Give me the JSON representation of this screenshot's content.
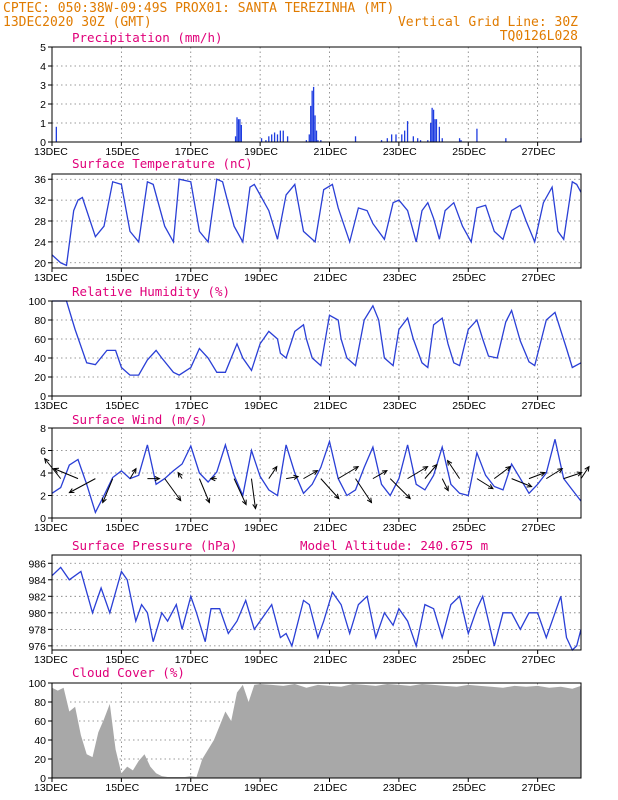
{
  "header": {
    "line1_left": "CPTEC:  050:38W-09:49S  PROX01: SANTA TEREZINHA (MT)",
    "line2_left": "13DEC2020 30Z (GMT)",
    "line2_right": "Vertical Grid Line: 30Z",
    "line3_right": "TQ0126L028"
  },
  "colors": {
    "header": "#e07b00",
    "title": "#e0007a",
    "line": "#2a3fd6",
    "bar": "#1e3ce0",
    "cloud": "#a8a8a8",
    "arrow": "#000000"
  },
  "x_axis": {
    "labels": [
      "13DEC",
      "15DEC",
      "17DEC",
      "19DEC",
      "21DEC",
      "23DEC",
      "25DEC",
      "27DEC"
    ],
    "label_hours": [
      0,
      48,
      96,
      144,
      192,
      240,
      288,
      336
    ],
    "range_hours": [
      0,
      366
    ]
  },
  "chart_data": [
    {
      "type": "bar",
      "title": "Precipitation (mm/h)",
      "ylim": [
        0,
        5
      ],
      "yticks": [
        0,
        1,
        2,
        3,
        4,
        5
      ],
      "grid": true,
      "x": [
        3,
        127,
        128,
        129,
        130,
        131,
        145,
        148,
        150,
        152,
        154,
        156,
        158,
        160,
        163,
        176,
        178,
        179,
        180,
        181,
        182,
        183,
        184,
        186,
        210,
        228,
        232,
        235,
        238,
        242,
        244,
        246,
        250,
        253,
        255,
        260,
        262,
        263,
        264,
        265,
        266,
        268,
        270,
        282,
        283,
        294,
        314,
        366
      ],
      "values": [
        0.8,
        0.3,
        1.3,
        1.2,
        1.2,
        0.9,
        0.2,
        0.1,
        0.3,
        0.4,
        0.5,
        0.4,
        0.6,
        0.6,
        0.3,
        0.1,
        0.4,
        1.9,
        2.7,
        2.9,
        1.4,
        0.6,
        0.1,
        0.1,
        0.3,
        0.1,
        0.2,
        0.4,
        0.4,
        0.4,
        0.6,
        1.1,
        0.3,
        0.2,
        0.1,
        0.1,
        1.0,
        1.8,
        1.7,
        1.2,
        1.2,
        0.8,
        0.2,
        0.2,
        0.1,
        0.7,
        0.2,
        0.2
      ]
    },
    {
      "type": "line",
      "title": "Surface Temperature (nC)",
      "ylim": [
        19,
        37
      ],
      "yticks": [
        20,
        24,
        28,
        32,
        36
      ],
      "grid": true,
      "x": [
        0,
        6,
        10,
        15,
        18,
        21,
        30,
        36,
        42,
        48,
        54,
        60,
        66,
        70,
        78,
        84,
        88,
        96,
        102,
        108,
        114,
        118,
        126,
        132,
        137,
        140,
        150,
        156,
        162,
        168,
        174,
        182,
        188,
        194,
        198,
        206,
        212,
        218,
        222,
        230,
        236,
        240,
        246,
        252,
        256,
        260,
        264,
        268,
        272,
        278,
        284,
        290,
        294,
        300,
        306,
        312,
        318,
        324,
        328,
        334,
        340,
        346,
        350,
        354,
        360,
        363,
        366
      ],
      "values": [
        21.5,
        20,
        19.5,
        30,
        32,
        32.5,
        25,
        27,
        35.5,
        35,
        26,
        24,
        35.5,
        35,
        27,
        24,
        36,
        35.5,
        26,
        24,
        36,
        35.5,
        27,
        24,
        34.5,
        35,
        30,
        24.5,
        33,
        35,
        26,
        24,
        34,
        35,
        30.5,
        24,
        30.5,
        30,
        27.5,
        24.5,
        31.5,
        32,
        30,
        24,
        30,
        31.5,
        28.5,
        24.5,
        30,
        31.5,
        27,
        24,
        30.5,
        31,
        26,
        24.5,
        30,
        31,
        28,
        24,
        31.5,
        34.5,
        26,
        24.5,
        35.5,
        35,
        33.5
      ]
    },
    {
      "type": "line",
      "title": "Relative Humidity (%)",
      "ylim": [
        0,
        100
      ],
      "yticks": [
        0,
        20,
        40,
        60,
        80,
        100
      ],
      "grid": true,
      "x": [
        0,
        10,
        16,
        24,
        30,
        38,
        44,
        48,
        54,
        60,
        66,
        72,
        76,
        84,
        88,
        96,
        102,
        108,
        114,
        120,
        124,
        128,
        132,
        138,
        144,
        150,
        156,
        158,
        162,
        168,
        174,
        176,
        180,
        186,
        192,
        198,
        200,
        204,
        210,
        216,
        222,
        226,
        230,
        236,
        240,
        246,
        250,
        256,
        260,
        264,
        270,
        274,
        278,
        282,
        288,
        294,
        298,
        302,
        308,
        314,
        318,
        324,
        330,
        334,
        342,
        348,
        356,
        360,
        366
      ],
      "values": [
        100,
        100,
        70,
        35,
        33,
        48,
        48,
        30,
        22,
        22,
        38,
        48,
        40,
        25,
        22,
        30,
        50,
        40,
        25,
        25,
        40,
        55,
        40,
        27,
        55,
        68,
        60,
        45,
        40,
        68,
        75,
        60,
        40,
        32,
        85,
        80,
        60,
        40,
        32,
        80,
        95,
        80,
        40,
        32,
        70,
        82,
        60,
        35,
        30,
        75,
        82,
        55,
        35,
        32,
        70,
        80,
        60,
        42,
        40,
        78,
        90,
        58,
        36,
        32,
        80,
        88,
        50,
        30,
        35
      ]
    },
    {
      "type": "line",
      "title": "Surface Wind (m/s)",
      "ylim": [
        0,
        8
      ],
      "yticks": [
        0,
        2,
        4,
        6,
        8
      ],
      "grid": true,
      "x": [
        0,
        6,
        12,
        18,
        24,
        30,
        36,
        42,
        48,
        54,
        60,
        66,
        72,
        78,
        84,
        90,
        96,
        102,
        108,
        114,
        120,
        126,
        132,
        138,
        144,
        150,
        156,
        162,
        168,
        174,
        180,
        186,
        192,
        198,
        204,
        210,
        216,
        222,
        228,
        234,
        240,
        246,
        252,
        258,
        264,
        270,
        276,
        282,
        288,
        294,
        300,
        306,
        312,
        318,
        324,
        330,
        336,
        342,
        348,
        354,
        360,
        366
      ],
      "values": [
        2.2,
        2.7,
        4.7,
        5.2,
        3.0,
        0.5,
        2.0,
        3.6,
        4.2,
        3.5,
        3.8,
        6.5,
        3.0,
        3.5,
        4.2,
        4.8,
        6.4,
        4.0,
        3.2,
        4.1,
        6.5,
        3.8,
        2.0,
        6.0,
        3.7,
        2.5,
        2.0,
        6.5,
        4.0,
        2.2,
        3.0,
        4.5,
        6.8,
        3.5,
        2.0,
        2.5,
        4.5,
        6.3,
        3.0,
        2.0,
        3.5,
        6.5,
        3.0,
        2.5,
        3.8,
        6.3,
        3.0,
        2.2,
        2.0,
        5.8,
        3.8,
        2.8,
        2.5,
        4.8,
        3.5,
        2.2,
        3.0,
        4.0,
        7.0,
        3.5,
        2.5,
        1.5
      ],
      "vectors": {
        "x": [
          6,
          18,
          30,
          42,
          54,
          66,
          78,
          90,
          102,
          114,
          126,
          138,
          150,
          162,
          174,
          186,
          198,
          210,
          222,
          234,
          246,
          258,
          270,
          282,
          294,
          306,
          318,
          330,
          342,
          354,
          366
        ],
        "u": [
          -0.8,
          -1.2,
          -1.3,
          -0.5,
          0.3,
          0.6,
          0.8,
          -0.2,
          0.5,
          -0.3,
          0.6,
          0.2,
          0.4,
          0.6,
          0.7,
          0.9,
          1.0,
          0.8,
          0.7,
          1.0,
          1.0,
          0.6,
          0.3,
          -0.6,
          0.8,
          0.8,
          1.0,
          0.8,
          0.8,
          0.9,
          0.4
        ],
        "v": [
          1.0,
          0.5,
          -0.7,
          -1.2,
          0.5,
          0.0,
          -1.1,
          0.3,
          -1.2,
          0.0,
          -1.3,
          -1.5,
          0.6,
          0.1,
          0.4,
          -1.0,
          0.6,
          -1.2,
          0.4,
          -1.0,
          0.6,
          0.7,
          -0.6,
          0.9,
          -0.5,
          0.6,
          -0.4,
          0.3,
          0.5,
          0.3,
          0.6
        ]
      }
    },
    {
      "type": "line",
      "title": "Surface Pressure (hPa)",
      "extra_label": "Model Altitude: 240.675 m",
      "ylim": [
        975.5,
        987
      ],
      "yticks": [
        976,
        978,
        980,
        982,
        984,
        986
      ],
      "grid": true,
      "x": [
        0,
        6,
        12,
        20,
        28,
        34,
        40,
        48,
        52,
        58,
        62,
        66,
        70,
        76,
        80,
        86,
        90,
        96,
        100,
        106,
        110,
        116,
        122,
        128,
        134,
        140,
        146,
        152,
        158,
        162,
        166,
        174,
        178,
        184,
        188,
        194,
        200,
        206,
        212,
        218,
        224,
        230,
        236,
        240,
        246,
        252,
        258,
        264,
        270,
        276,
        282,
        288,
        294,
        298,
        302,
        306,
        312,
        318,
        324,
        330,
        336,
        342,
        348,
        352,
        356,
        360,
        363,
        366
      ],
      "values": [
        984.5,
        985.5,
        984,
        985,
        980,
        983,
        980,
        985,
        984,
        979,
        981,
        980,
        976.5,
        980,
        979,
        981,
        978,
        982,
        980,
        976.5,
        980.5,
        980.5,
        977.5,
        979,
        981.5,
        978,
        979.5,
        981,
        977,
        977.5,
        976,
        981.5,
        981,
        977,
        979,
        982.5,
        981,
        977.5,
        981,
        982,
        977,
        980,
        978.5,
        980.5,
        979,
        976,
        981,
        980.5,
        977,
        981,
        982,
        977.5,
        980.5,
        982,
        979,
        976,
        980,
        980,
        978,
        980,
        980,
        977,
        980,
        982,
        977,
        975.5,
        976,
        978
      ]
    },
    {
      "type": "area",
      "title": "Cloud Cover (%)",
      "ylim": [
        0,
        100
      ],
      "yticks": [
        0,
        20,
        40,
        60,
        80,
        100
      ],
      "grid": true,
      "x": [
        0,
        4,
        8,
        12,
        16,
        20,
        24,
        28,
        32,
        36,
        40,
        44,
        48,
        52,
        56,
        60,
        64,
        68,
        72,
        76,
        80,
        84,
        88,
        92,
        96,
        100,
        104,
        108,
        112,
        116,
        120,
        124,
        128,
        132,
        136,
        140,
        144,
        152,
        160,
        168,
        176,
        184,
        192,
        200,
        208,
        216,
        224,
        232,
        240,
        248,
        256,
        264,
        272,
        280,
        288,
        296,
        304,
        312,
        320,
        328,
        336,
        344,
        352,
        360,
        366
      ],
      "values": [
        95,
        92,
        95,
        70,
        75,
        45,
        25,
        22,
        48,
        62,
        78,
        30,
        5,
        12,
        8,
        18,
        25,
        12,
        5,
        2,
        1,
        1,
        1,
        1,
        2,
        1,
        20,
        30,
        40,
        55,
        70,
        60,
        90,
        98,
        80,
        98,
        99,
        98,
        97,
        99,
        95,
        98,
        97,
        96,
        99,
        98,
        97,
        99,
        98,
        97,
        99,
        98,
        97,
        96,
        98,
        97,
        96,
        95,
        97,
        96,
        97,
        95,
        96,
        94,
        97
      ]
    }
  ]
}
